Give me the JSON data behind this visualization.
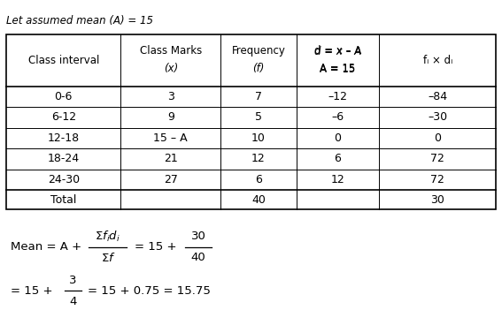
{
  "title_text": "Let assumed mean (A) = 15",
  "col_headers_line1": [
    "Class interval",
    "Class Marks",
    "Frequency",
    "d = x – A",
    "fᵢ × dᵢ"
  ],
  "col_headers_line2": [
    "",
    "(x)",
    "(f)",
    "A = 15",
    ""
  ],
  "rows": [
    [
      "0-6",
      "3",
      "7",
      "–12",
      "–84"
    ],
    [
      "6-12",
      "9",
      "5",
      "–6",
      "–30"
    ],
    [
      "12-18",
      "15 – A",
      "10",
      "0",
      "0"
    ],
    [
      "18-24",
      "21",
      "12",
      "6",
      "72"
    ],
    [
      "24-30",
      "27",
      "6",
      "12",
      "72"
    ]
  ],
  "total_row": [
    "Total",
    "",
    "40",
    "",
    "30"
  ],
  "bg_color": "#ffffff",
  "text_color": "#000000"
}
